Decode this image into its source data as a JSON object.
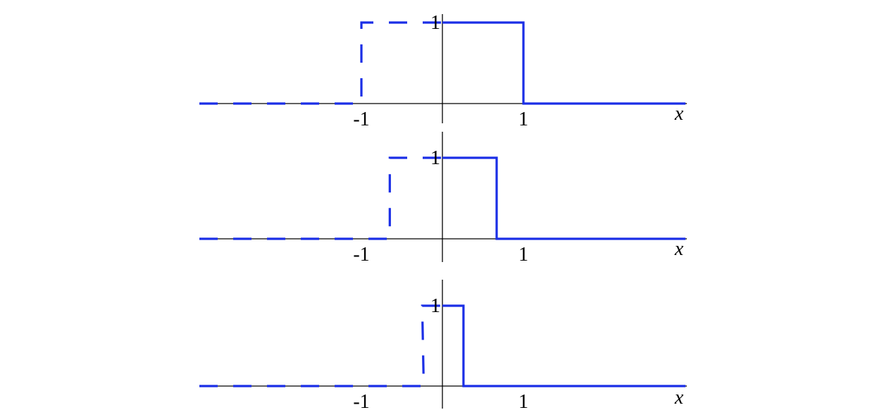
{
  "chart_data": [
    {
      "type": "line",
      "xlabel": "x",
      "ylabel": "",
      "grid": false,
      "x_ticks": [
        {
          "value": -1,
          "label": "-1"
        },
        {
          "value": 1,
          "label": "1"
        }
      ],
      "y_ticks": [
        {
          "value": 1,
          "label": "1"
        }
      ],
      "xlim": [
        -3,
        3
      ],
      "series": [
        {
          "style": "dashed",
          "color": "#1a2ee6",
          "x": [
            -3,
            -1,
            -1,
            0
          ],
          "y": [
            0,
            0,
            1,
            1
          ]
        },
        {
          "style": "solid",
          "color": "#1a2ee6",
          "x": [
            0,
            1,
            1,
            3
          ],
          "y": [
            1,
            1,
            0,
            0
          ]
        }
      ]
    },
    {
      "type": "line",
      "xlabel": "x",
      "ylabel": "",
      "grid": false,
      "x_ticks": [
        {
          "value": -1,
          "label": "-1"
        },
        {
          "value": 1,
          "label": "1"
        }
      ],
      "y_ticks": [
        {
          "value": 1,
          "label": "1"
        }
      ],
      "xlim": [
        -3,
        3
      ],
      "series": [
        {
          "style": "dashed",
          "color": "#1a2ee6",
          "x": [
            -3,
            -0.65,
            -0.65,
            0
          ],
          "y": [
            0,
            0,
            1,
            1
          ]
        },
        {
          "style": "solid",
          "color": "#1a2ee6",
          "x": [
            0,
            0.67,
            0.67,
            3
          ],
          "y": [
            1,
            1,
            0,
            0
          ]
        }
      ]
    },
    {
      "type": "line",
      "xlabel": "x",
      "ylabel": "",
      "grid": false,
      "x_ticks": [
        {
          "value": -1,
          "label": "-1"
        },
        {
          "value": 1,
          "label": "1"
        }
      ],
      "y_ticks": [
        {
          "value": 1,
          "label": "1"
        }
      ],
      "xlim": [
        -3,
        3
      ],
      "series": [
        {
          "style": "dashed",
          "color": "#1a2ee6",
          "x": [
            -3,
            -0.23,
            -0.25,
            0
          ],
          "y": [
            0,
            0,
            1,
            1
          ]
        },
        {
          "style": "solid",
          "color": "#1a2ee6",
          "x": [
            0,
            0.26,
            0.26,
            3
          ],
          "y": [
            1,
            1,
            0,
            0
          ]
        }
      ]
    }
  ]
}
